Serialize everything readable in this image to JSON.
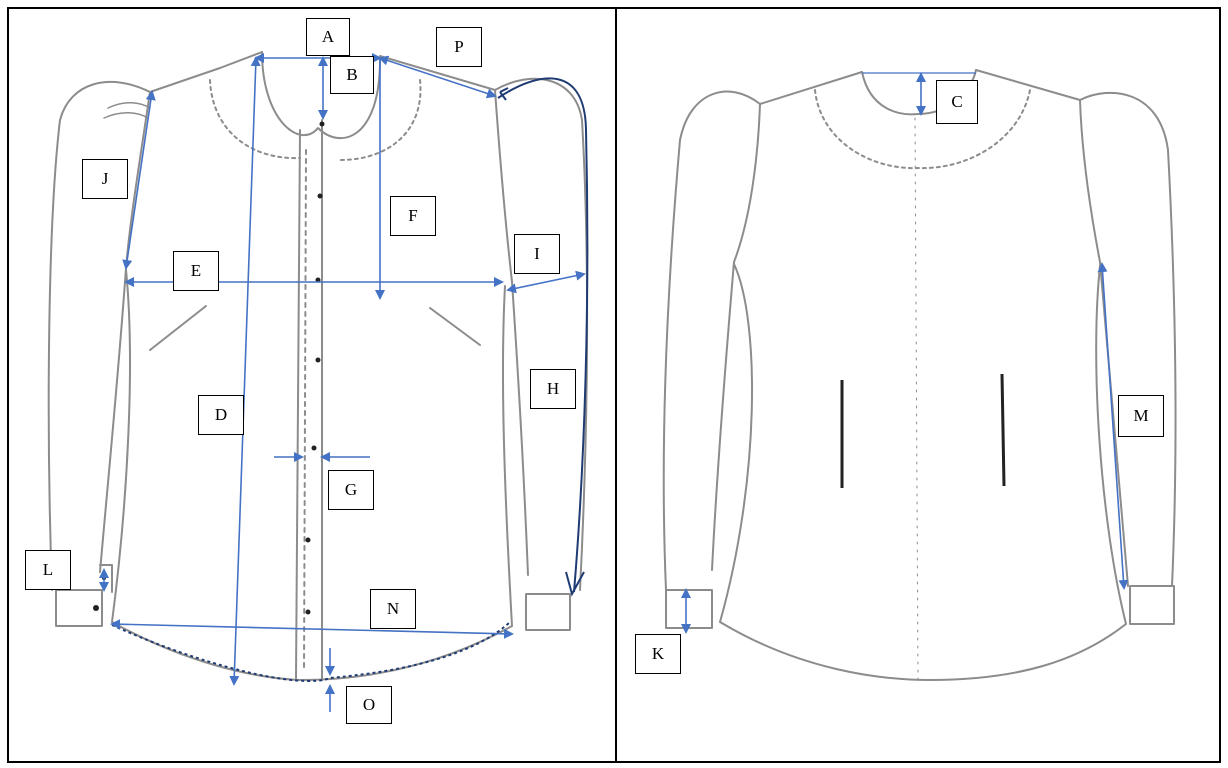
{
  "colors": {
    "sketch": "#8c8c8c",
    "arrow": "#4472c4",
    "dark_arrow": "#1f3b73",
    "border": "#000000"
  },
  "labels": {
    "A": "A",
    "B": "B",
    "P": "P",
    "J": "J",
    "F": "F",
    "E": "E",
    "I": "I",
    "H": "H",
    "D": "D",
    "G": "G",
    "L": "L",
    "N": "N",
    "O": "O",
    "C": "C",
    "M": "M",
    "K": "K"
  }
}
